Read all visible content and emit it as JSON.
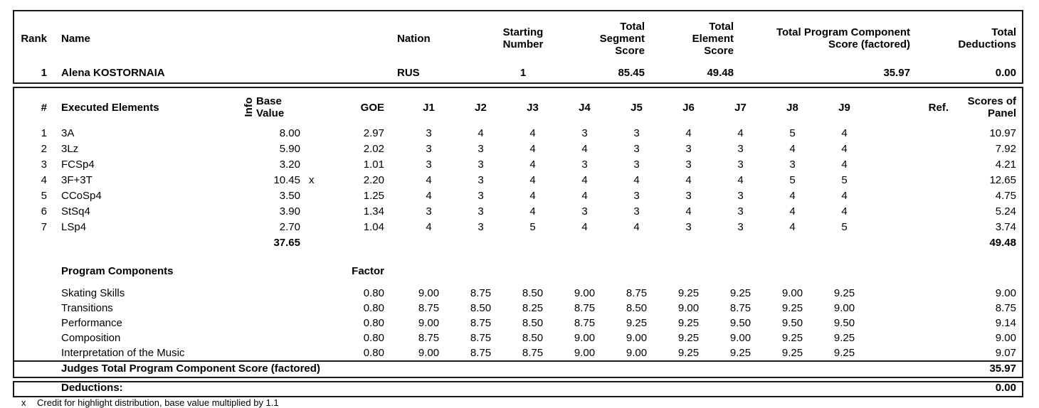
{
  "summary": {
    "headers": {
      "rank": "Rank",
      "name": "Name",
      "nation": "Nation",
      "starting_number": "Starting Number",
      "total_segment_score": "Total Segment Score",
      "total_element_score": "Total Element Score",
      "total_pcs_factored": "Total Program Component Score (factored)",
      "total_deductions": "Total Deductions"
    },
    "row": {
      "rank": "1",
      "name": "Alena KOSTORNAIA",
      "nation": "RUS",
      "starting_number": "1",
      "total_segment_score": "85.45",
      "total_element_score": "49.48",
      "total_pcs_factored": "35.97",
      "total_deductions": "0.00"
    }
  },
  "elements_table": {
    "headers": {
      "num": "#",
      "executed_elements": "Executed Elements",
      "info": "Info",
      "base_value": "Base Value",
      "goe": "GOE",
      "ref": "Ref.",
      "scores_of_panel": "Scores of Panel"
    },
    "judge_headers": [
      "J1",
      "J2",
      "J3",
      "J4",
      "J5",
      "J6",
      "J7",
      "J8",
      "J9"
    ],
    "rows": [
      {
        "num": "1",
        "name": "3A",
        "info": "",
        "base": "8.00",
        "x": "",
        "goe": "2.97",
        "judges": [
          "3",
          "4",
          "4",
          "3",
          "3",
          "4",
          "4",
          "5",
          "4"
        ],
        "panel": "10.97"
      },
      {
        "num": "2",
        "name": "3Lz",
        "info": "",
        "base": "5.90",
        "x": "",
        "goe": "2.02",
        "judges": [
          "3",
          "3",
          "4",
          "4",
          "3",
          "3",
          "3",
          "4",
          "4"
        ],
        "panel": "7.92"
      },
      {
        "num": "3",
        "name": "FCSp4",
        "info": "",
        "base": "3.20",
        "x": "",
        "goe": "1.01",
        "judges": [
          "3",
          "3",
          "4",
          "3",
          "3",
          "3",
          "3",
          "3",
          "4"
        ],
        "panel": "4.21"
      },
      {
        "num": "4",
        "name": "3F+3T",
        "info": "",
        "base": "10.45",
        "x": "x",
        "goe": "2.20",
        "judges": [
          "4",
          "3",
          "4",
          "4",
          "4",
          "4",
          "4",
          "5",
          "5"
        ],
        "panel": "12.65"
      },
      {
        "num": "5",
        "name": "CCoSp4",
        "info": "",
        "base": "3.50",
        "x": "",
        "goe": "1.25",
        "judges": [
          "4",
          "3",
          "4",
          "4",
          "3",
          "3",
          "3",
          "4",
          "4"
        ],
        "panel": "4.75"
      },
      {
        "num": "6",
        "name": "StSq4",
        "info": "",
        "base": "3.90",
        "x": "",
        "goe": "1.34",
        "judges": [
          "3",
          "3",
          "4",
          "3",
          "3",
          "4",
          "3",
          "4",
          "4"
        ],
        "panel": "5.24"
      },
      {
        "num": "7",
        "name": "LSp4",
        "info": "",
        "base": "2.70",
        "x": "",
        "goe": "1.04",
        "judges": [
          "4",
          "3",
          "5",
          "4",
          "4",
          "3",
          "3",
          "4",
          "5"
        ],
        "panel": "3.74"
      }
    ],
    "totals": {
      "base_value": "37.65",
      "scores_of_panel": "49.48"
    }
  },
  "components_table": {
    "title": "Program Components",
    "factor_label": "Factor",
    "rows": [
      {
        "name": "Skating Skills",
        "factor": "0.80",
        "judges": [
          "9.00",
          "8.75",
          "8.50",
          "9.00",
          "8.75",
          "9.25",
          "9.25",
          "9.00",
          "9.25"
        ],
        "panel": "9.00"
      },
      {
        "name": "Transitions",
        "factor": "0.80",
        "judges": [
          "8.75",
          "8.50",
          "8.25",
          "8.75",
          "8.50",
          "9.00",
          "8.75",
          "9.25",
          "9.00"
        ],
        "panel": "8.75"
      },
      {
        "name": "Performance",
        "factor": "0.80",
        "judges": [
          "9.00",
          "8.75",
          "8.50",
          "8.75",
          "9.25",
          "9.25",
          "9.50",
          "9.50",
          "9.50"
        ],
        "panel": "9.14"
      },
      {
        "name": "Composition",
        "factor": "0.80",
        "judges": [
          "8.75",
          "8.75",
          "8.50",
          "9.00",
          "9.00",
          "9.25",
          "9.00",
          "9.25",
          "9.25"
        ],
        "panel": "9.00"
      },
      {
        "name": "Interpretation of the Music",
        "factor": "0.80",
        "judges": [
          "9.00",
          "8.75",
          "8.75",
          "9.00",
          "9.00",
          "9.25",
          "9.25",
          "9.25",
          "9.25"
        ],
        "panel": "9.07"
      }
    ],
    "total_label": "Judges Total Program Component Score (factored)",
    "total_value": "35.97"
  },
  "deductions": {
    "label": "Deductions:",
    "value": "0.00"
  },
  "footnote": {
    "marker": "x",
    "text": "Credit for highlight distribution, base value multiplied by 1.1"
  }
}
